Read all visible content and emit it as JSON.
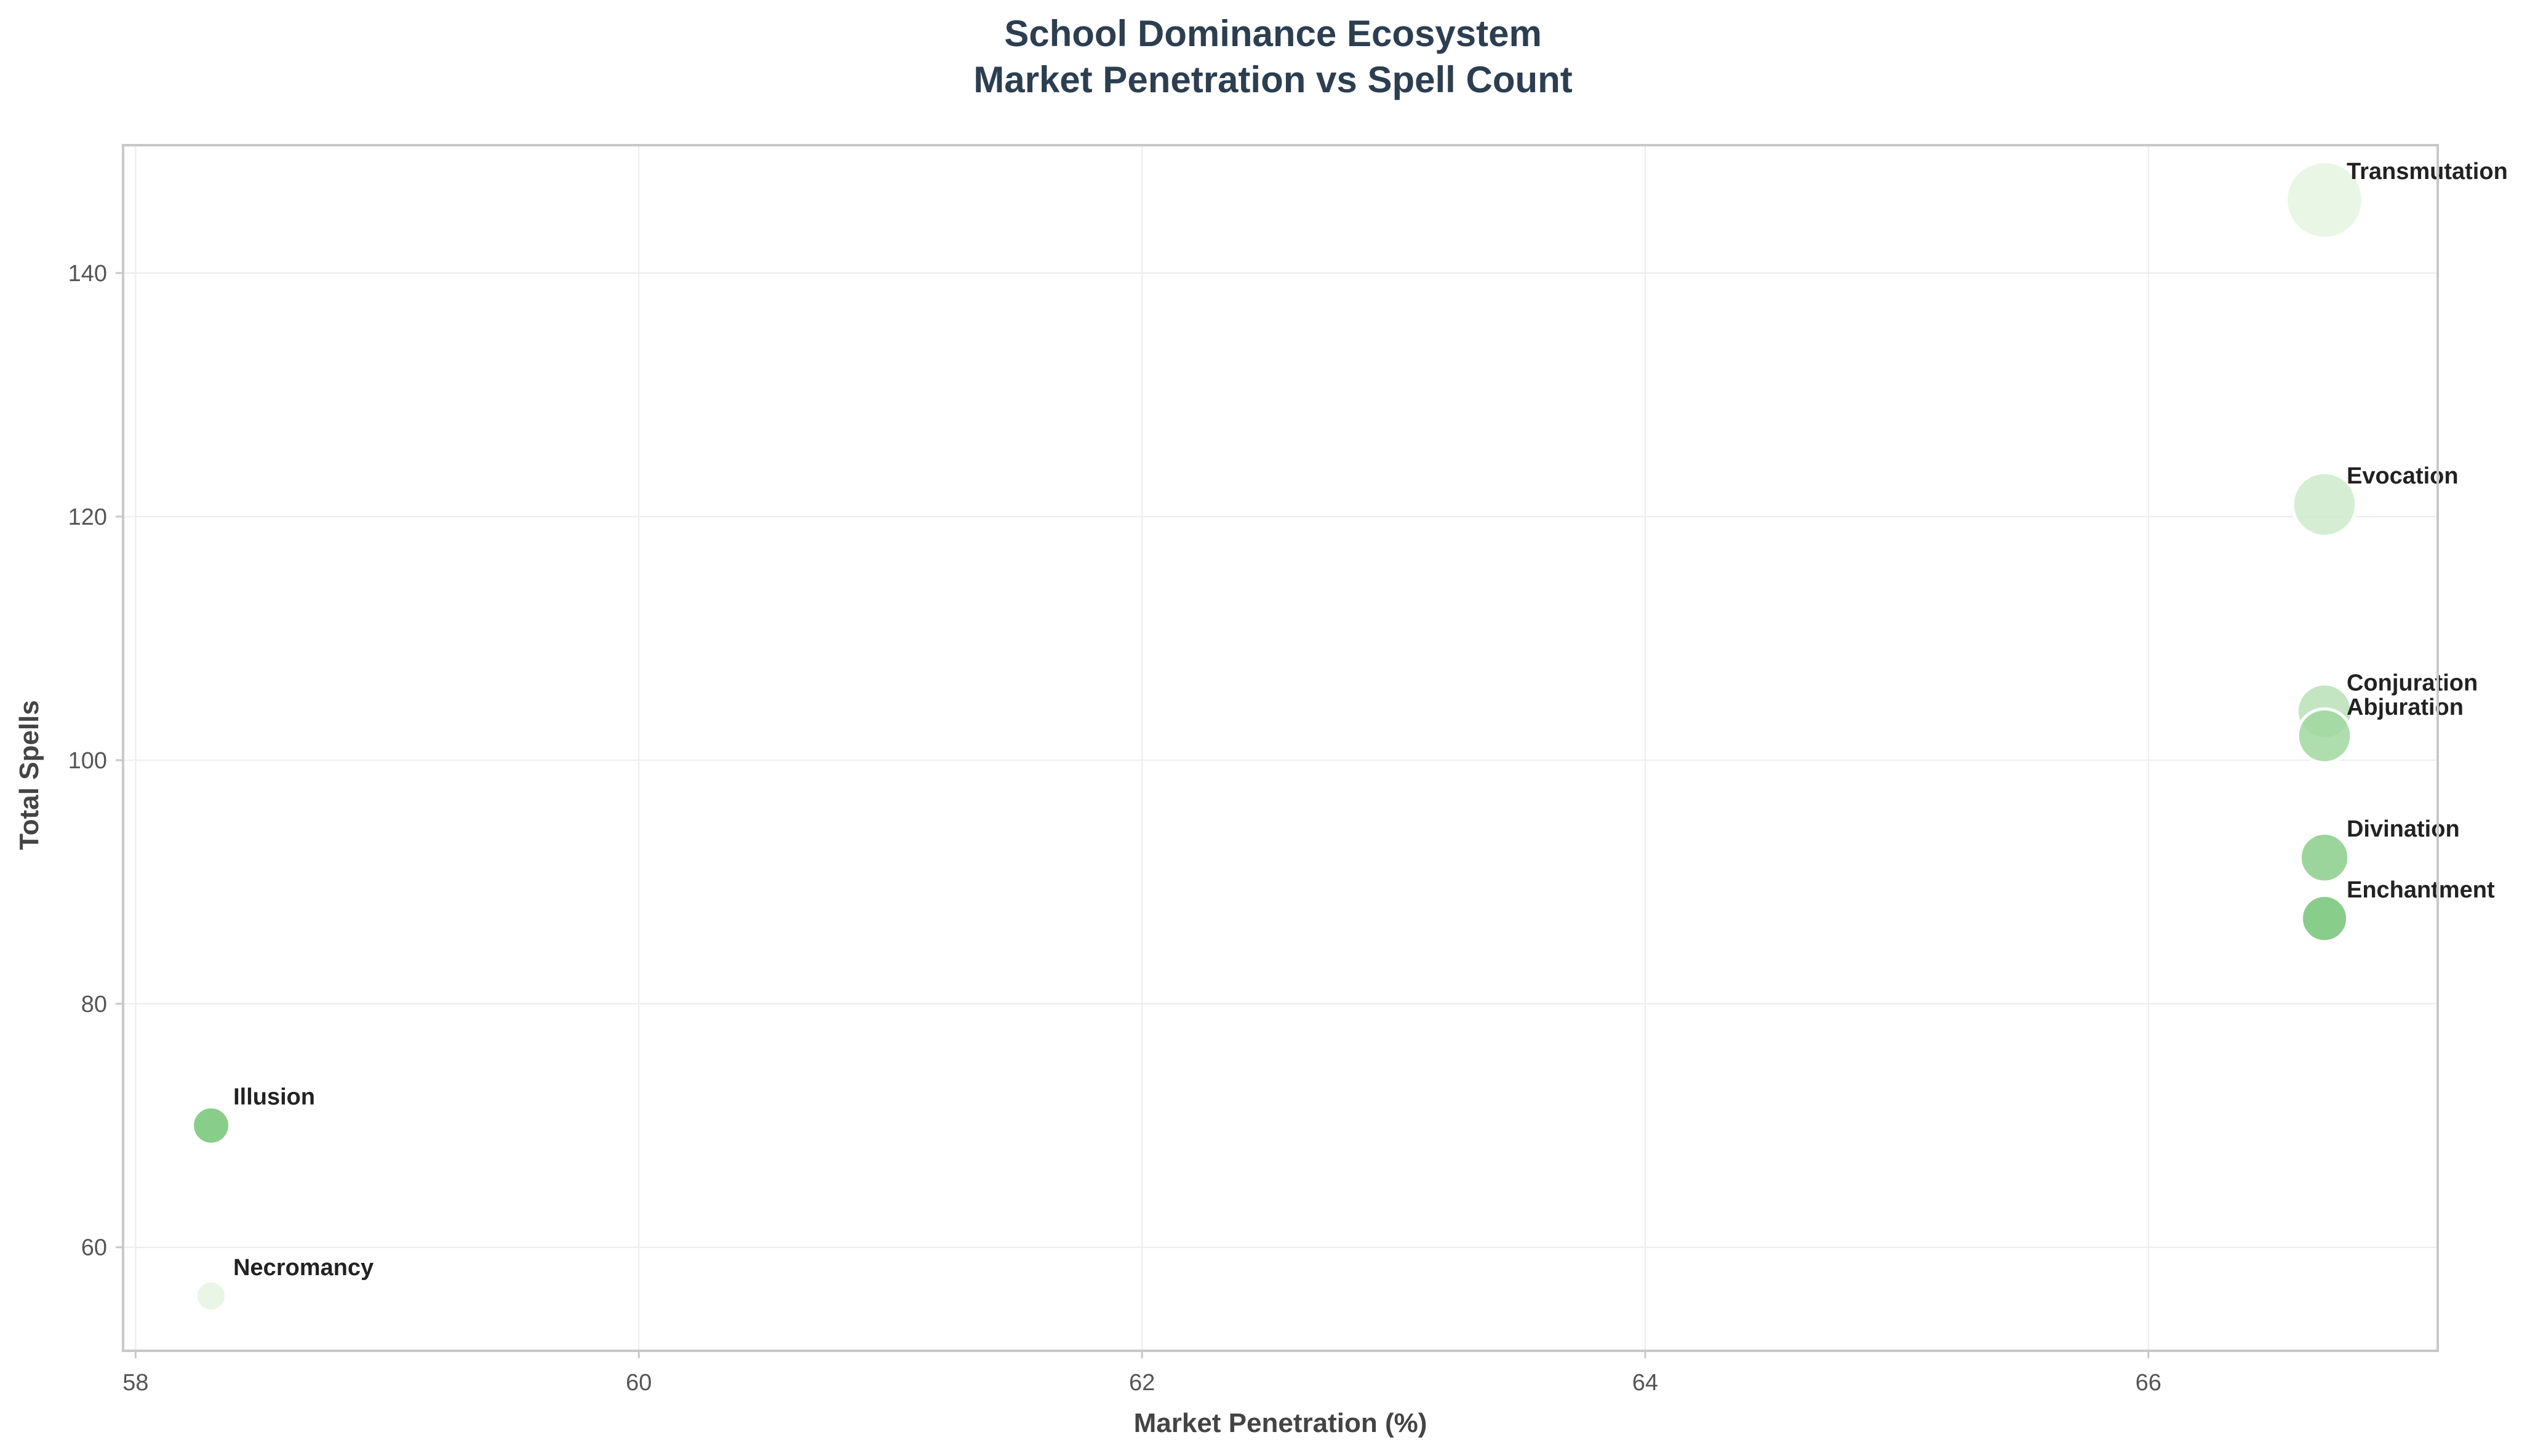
{
  "chart_data": {
    "type": "scatter",
    "title": [
      "School Dominance Ecosystem",
      "Market Penetration vs Spell Count"
    ],
    "xlabel": "Market Penetration (%)",
    "ylabel": "Total Spells",
    "xlim": [
      57.95,
      67.15
    ],
    "ylim": [
      51.5,
      150.5
    ],
    "xticks": [
      58,
      60,
      62,
      64,
      66
    ],
    "yticks": [
      60,
      80,
      100,
      120,
      140
    ],
    "grid": true,
    "legend": "none",
    "colors": {
      "light": "#e5f5e0",
      "dark": "#74c476",
      "edge": "#ffffff"
    },
    "points": [
      {
        "label": "Transmutation",
        "x": 66.7,
        "y": 146,
        "size": 146
      },
      {
        "label": "Evocation",
        "x": 66.7,
        "y": 121,
        "size": 121
      },
      {
        "label": "Conjuration",
        "x": 66.7,
        "y": 104,
        "size": 104
      },
      {
        "label": "Abjuration",
        "x": 66.7,
        "y": 102,
        "size": 102
      },
      {
        "label": "Divination",
        "x": 66.7,
        "y": 92,
        "size": 92
      },
      {
        "label": "Enchantment",
        "x": 66.7,
        "y": 87,
        "size": 87
      },
      {
        "label": "Illusion",
        "x": 58.3,
        "y": 70,
        "size": 70
      },
      {
        "label": "Necromancy",
        "x": 58.3,
        "y": 56,
        "size": 56
      }
    ]
  }
}
